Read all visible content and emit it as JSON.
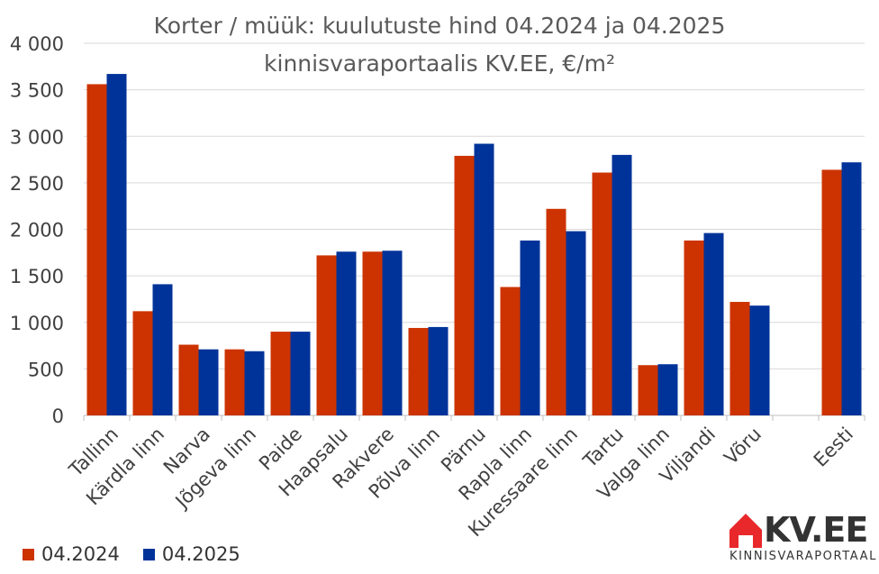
{
  "chart_data": {
    "type": "bar",
    "title": "Korter / müük: kuulutuste hind 04.2024 ja 04.2025",
    "subtitle": "kinnisvaraportaalis KV.EE, €/m²",
    "xlabel": "",
    "ylabel": "",
    "ylim": [
      0,
      4000
    ],
    "yticks": [
      "0",
      "500",
      "1 000",
      "1 500",
      "2 000",
      "2 500",
      "3 000",
      "3 500",
      "4 000"
    ],
    "grid": true,
    "legend": "bottom-left",
    "categories": [
      "Tallinn",
      "Kärdla linn",
      "Narva",
      "Jõgeva linn",
      "Paide",
      "Haapsalu",
      "Rakvere",
      "Põlva linn",
      "Pärnu",
      "Rapla linn",
      "Kuressaare linn",
      "Tartu",
      "Valga linn",
      "Viljandi",
      "Võru",
      "",
      "Eesti"
    ],
    "series": [
      {
        "name": "04.2024",
        "color": "#cc3300",
        "values": [
          3560,
          1120,
          760,
          710,
          900,
          1720,
          1760,
          940,
          2790,
          1380,
          2220,
          2610,
          540,
          1880,
          1220,
          null,
          2640
        ]
      },
      {
        "name": "04.2025",
        "color": "#003399",
        "values": [
          3670,
          1410,
          710,
          690,
          900,
          1760,
          1770,
          950,
          2920,
          1880,
          1980,
          2800,
          550,
          1960,
          1180,
          null,
          2720
        ]
      }
    ]
  },
  "logo": {
    "name": "KV.EE",
    "tagline": "KINNISVARAPORTAAL",
    "accent": "#e8282b"
  }
}
